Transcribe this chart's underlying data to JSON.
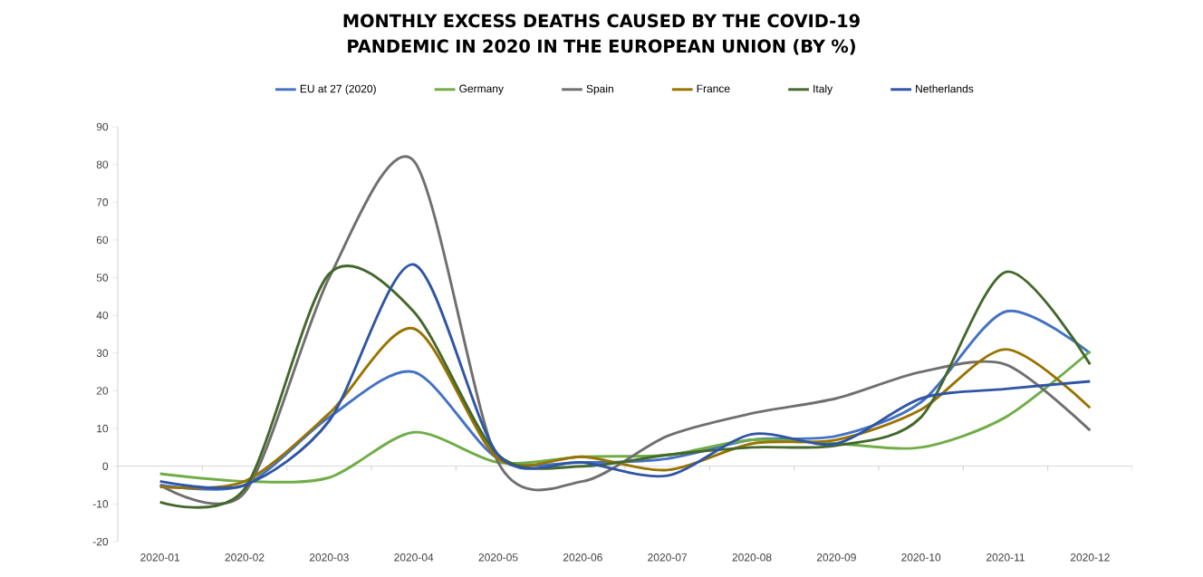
{
  "chart_data": {
    "type": "line",
    "title": "MONTHLY EXCESS DEATHS CAUSED BY THE COVID-19 PANDEMIC IN 2020 IN THE EUROPEAN UNION (BY %)",
    "categories": [
      "2020-01",
      "2020-02",
      "2020-03",
      "2020-04",
      "2020-05",
      "2020-06",
      "2020-07",
      "2020-08",
      "2020-09",
      "2020-10",
      "2020-11",
      "2020-12"
    ],
    "series": [
      {
        "name": "EU at 27 (2020)",
        "color": "#4472c4",
        "values": [
          -5,
          -5,
          13,
          25,
          2,
          1,
          2,
          7,
          8,
          17,
          41,
          30
        ]
      },
      {
        "name": "Germany",
        "color": "#70ad47",
        "values": [
          -2,
          -4,
          -3,
          9,
          1,
          2.5,
          3,
          7,
          6,
          5,
          13,
          30.5
        ]
      },
      {
        "name": "Spain",
        "color": "#6f6f6f",
        "values": [
          -5,
          -7,
          50,
          81,
          1,
          -4,
          8,
          14,
          18,
          25,
          27,
          9.5
        ]
      },
      {
        "name": "France",
        "color": "#997300",
        "values": [
          -5.5,
          -4,
          14,
          36.5,
          2,
          2.5,
          -1,
          6,
          7,
          15,
          31,
          15.5
        ]
      },
      {
        "name": "Italy",
        "color": "#43682b",
        "values": [
          -9.5,
          -6,
          51,
          41,
          3,
          0,
          3,
          5,
          5.5,
          13,
          51.5,
          27
        ]
      },
      {
        "name": "Netherlands",
        "color": "#2f55a4",
        "values": [
          -4,
          -5,
          12,
          53.5,
          3,
          1,
          -2.5,
          8.5,
          6,
          18,
          20.5,
          22.5
        ]
      }
    ],
    "ylim": [
      -20,
      90
    ],
    "yticks": [
      -20,
      -10,
      0,
      10,
      20,
      30,
      40,
      50,
      60,
      70,
      80,
      90
    ],
    "legend": "top",
    "marker": "none",
    "line_style": "solid"
  }
}
